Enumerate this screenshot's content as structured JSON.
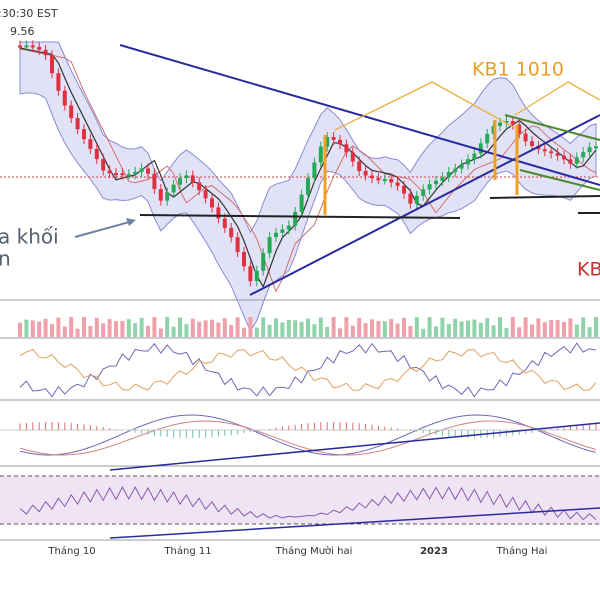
{
  "header": {
    "time": ":30:30 EST",
    "price": "9.56"
  },
  "annotations": {
    "label_1": "KB1 1010",
    "label_2": "a khối",
    "label_3": "n",
    "label_4": "KB"
  },
  "x_axis": {
    "labels": [
      "Tháng 10",
      "Tháng 11",
      "Tháng Mười hai",
      "2023",
      "Tháng Hai"
    ]
  }
}
